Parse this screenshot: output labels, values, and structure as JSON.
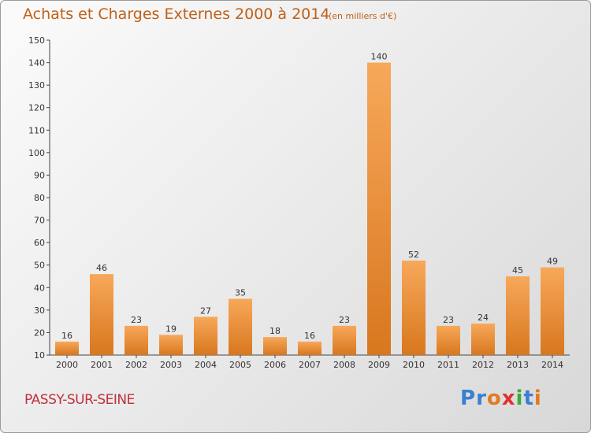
{
  "title": "Achats et Charges Externes 2000 à 2014",
  "unit_label": "(en milliers d'€)",
  "place": "PASSY-SUR-SEINE",
  "logo": {
    "text": "Proxiti",
    "colors": [
      "#3a7fd0",
      "#3a7fd0",
      "#e07b20",
      "#e03030",
      "#3aaa3a",
      "#3a7fd0",
      "#e07b20"
    ]
  },
  "colors": {
    "bar_light": "#f7a85a",
    "bar_dark": "#d8771e",
    "title": "#c06018",
    "city": "#c0303a"
  },
  "chart_data": {
    "type": "bar",
    "categories": [
      "2000",
      "2001",
      "2002",
      "2003",
      "2004",
      "2005",
      "2006",
      "2007",
      "2008",
      "2009",
      "2010",
      "2011",
      "2012",
      "2013",
      "2014"
    ],
    "values": [
      16,
      46,
      23,
      19,
      27,
      35,
      18,
      16,
      23,
      140,
      52,
      23,
      24,
      45,
      49
    ],
    "ylim": [
      10,
      150
    ],
    "yticks": [
      10,
      20,
      30,
      40,
      50,
      60,
      70,
      80,
      90,
      100,
      110,
      120,
      130,
      140,
      150
    ],
    "grid": false,
    "data_labels": true
  }
}
